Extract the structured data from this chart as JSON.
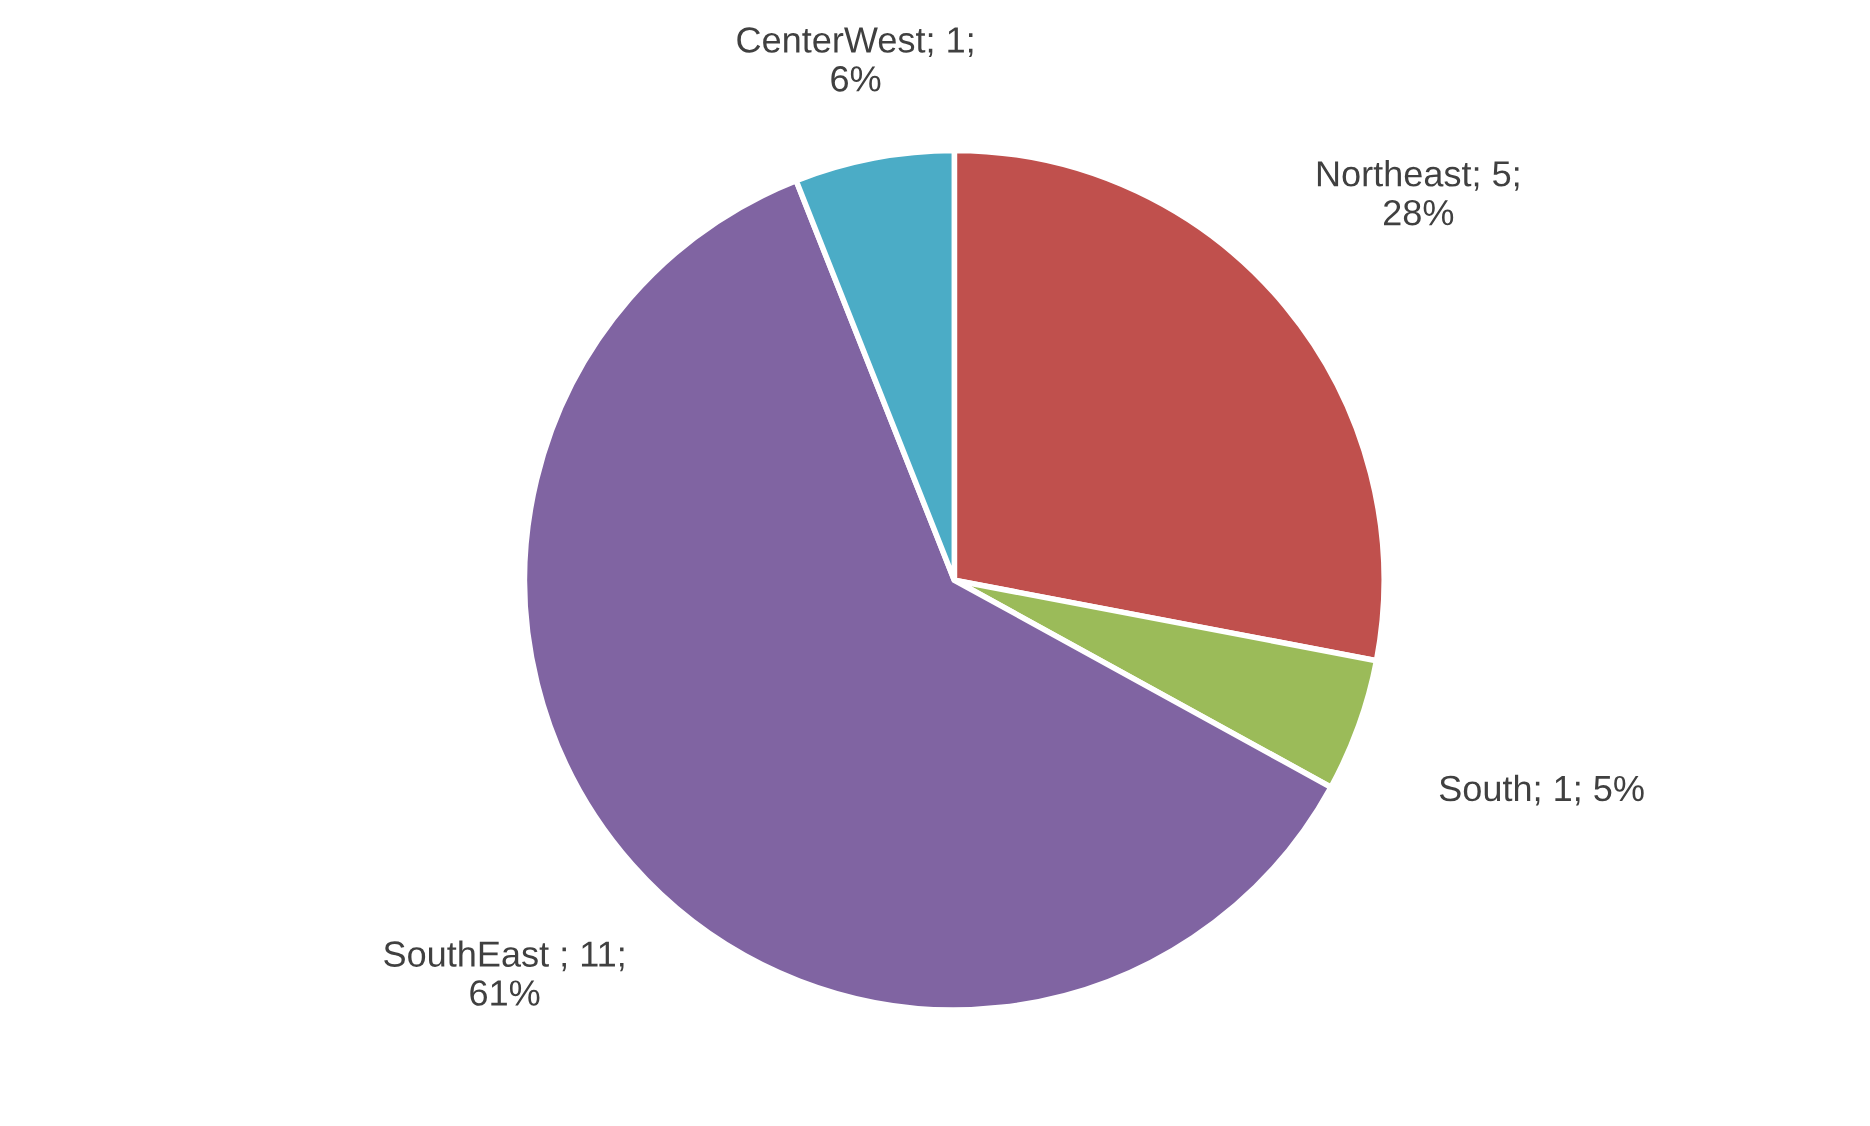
{
  "chart_data": {
    "type": "pie",
    "categories": [
      "Northeast",
      "South",
      "SouthEast ",
      "CenterWest"
    ],
    "values": [
      28,
      5,
      61,
      6
    ],
    "value_labels": [
      "5; 28%",
      "1; 5%",
      "11; 61%",
      "1; 6%"
    ],
    "colors": [
      "#c0504d",
      "#9bbb59",
      "#8064a2",
      "#4bacc6"
    ],
    "legend": false
  }
}
